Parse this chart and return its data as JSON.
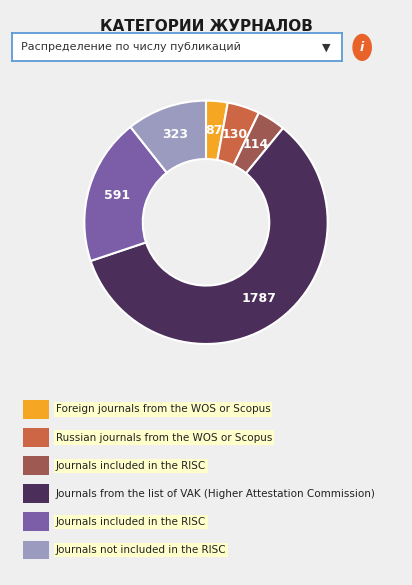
{
  "title": "КАТЕГОРИИ ЖУРНАЛОВ",
  "dropdown_text": "Распределение по числу публикаций",
  "values": [
    87,
    130,
    114,
    1787,
    591,
    323
  ],
  "labels": [
    "87",
    "130",
    "114",
    "1787",
    "591",
    "323"
  ],
  "colors": [
    "#F5A623",
    "#CC6644",
    "#9E5A52",
    "#4B2E5A",
    "#7B5EA7",
    "#9B9BBF"
  ],
  "legend_labels": [
    "Foreign journals from the WOS or Scopus",
    "Russian journals from the WOS or Scopus",
    "Journals included in the RISC",
    "Journals from the list of VAK (Higher Attestation Commission)",
    "Journals included in the RISC",
    "Journals not included in the RISC"
  ],
  "highlight_indices": [
    0,
    1,
    2,
    4,
    5
  ],
  "highlight_color": "#FFFFCC",
  "background_color": "#EFEFEF",
  "title_fontsize": 11,
  "legend_fontsize": 7.5,
  "wedge_label_fontsize": 9,
  "wedge_gap_color": "#FFFFFF",
  "dropdown_border_color": "#5B9BD5",
  "info_button_color": "#E8622A"
}
